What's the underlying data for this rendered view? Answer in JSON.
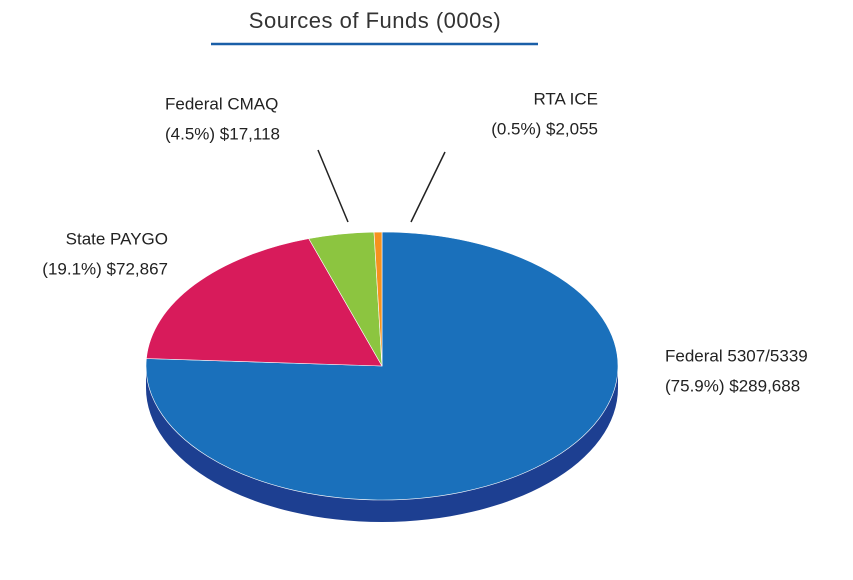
{
  "chart_data": {
    "type": "pie",
    "title": "Sources of Funds (000s)",
    "categories": [
      "Federal 5307/5339",
      "State PAYGO",
      "Federal CMAQ",
      "RTA ICE"
    ],
    "values": [
      289688,
      72867,
      17118,
      2055
    ],
    "value_labels": [
      "(75.9%) $289,688",
      "(19.1%) $72,867",
      "(4.5%) $17,118",
      "(0.5%) $2,055"
    ],
    "colors": [
      "#1a70bb",
      "#d81b5b",
      "#8cc540",
      "#f6921e"
    ],
    "side_colors": [
      "#1d3f91",
      "#8e1240",
      "#5a8a22",
      "#b0650f"
    ]
  }
}
